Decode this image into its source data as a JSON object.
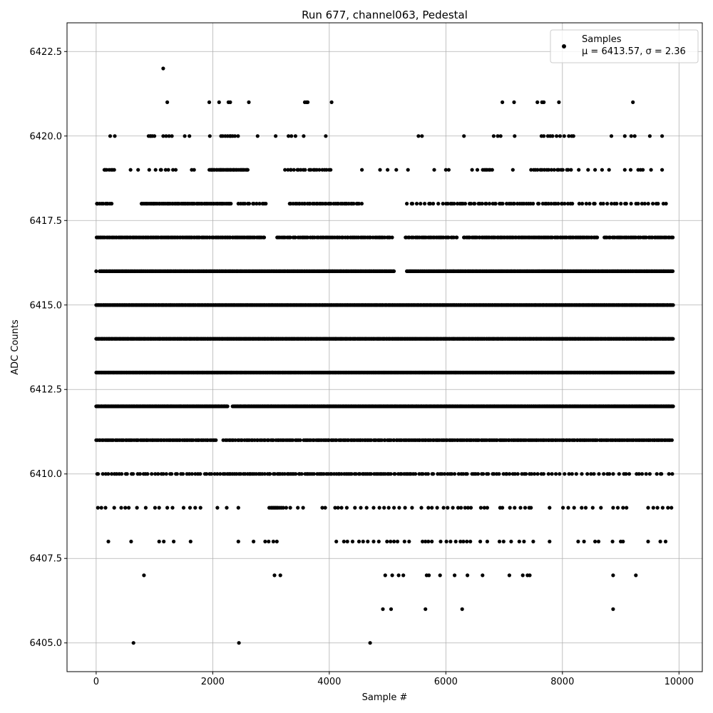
{
  "chart_data": {
    "type": "scatter",
    "title": "Run 677, channel063, Pedestal",
    "xlabel": "Sample #",
    "ylabel": "ADC Counts",
    "xlim": [
      -500,
      10400
    ],
    "ylim": [
      6404.15,
      6423.35
    ],
    "xticks": [
      0,
      2000,
      4000,
      6000,
      8000,
      10000
    ],
    "yticks": [
      6405.0,
      6407.5,
      6410.0,
      6412.5,
      6415.0,
      6417.5,
      6420.0,
      6422.5
    ],
    "xtick_labels": [
      "0",
      "2000",
      "4000",
      "6000",
      "8000",
      "10000"
    ],
    "ytick_labels": [
      "6405.0",
      "6407.5",
      "6410.0",
      "6412.5",
      "6415.0",
      "6417.5",
      "6420.0",
      "6422.5"
    ],
    "grid": true,
    "marker_color": "#000000",
    "legend": {
      "placement": "upper right",
      "entry_label": "Samples",
      "stats_prefix": "μ = ",
      "mu": "6413.57",
      "stats_mid": ", σ = ",
      "sigma": "2.36"
    },
    "x_range": [
      0,
      9900
    ],
    "levels": [
      {
        "y": 6405,
        "x": [
          640,
          2450,
          4700
        ]
      },
      {
        "y": 6406,
        "x": [
          4920,
          5060,
          5650,
          6280,
          8870
        ]
      },
      {
        "y": 6407,
        "x": [
          820,
          3060,
          3160,
          4960,
          5080,
          5190,
          5270,
          5670,
          5710,
          5900,
          6150,
          6370,
          6630,
          7090,
          7320,
          7400,
          7440,
          8870,
          9260
        ]
      },
      {
        "y": 6408,
        "x": [
          210,
          600,
          1080,
          1160,
          1330,
          1620,
          2440,
          2700,
          2900,
          2960,
          3040,
          3100,
          4120,
          4250,
          4310,
          4400,
          4510,
          4580,
          4660,
          4760,
          4850,
          4990,
          5050,
          5110,
          5170,
          5290,
          5370,
          5600,
          5650,
          5700,
          5760,
          5910,
          6010,
          6080,
          6170,
          6250,
          6300,
          6360,
          6420,
          6590,
          6710,
          6920,
          6990,
          7120,
          7260,
          7340,
          7500,
          7780,
          8270,
          8370,
          8560,
          8620,
          8860,
          9000,
          9040,
          9470,
          9680,
          9770
        ]
      },
      {
        "y": 6409,
        "x": [
          30,
          90,
          160,
          310,
          430,
          500,
          560,
          700,
          850,
          1010,
          1080,
          1220,
          1310,
          1500,
          1610,
          1700,
          1790,
          2080,
          2240,
          2440,
          2970,
          3000,
          3020,
          3040,
          3060,
          3080,
          3100,
          3120,
          3150,
          3180,
          3210,
          3260,
          3330,
          3460,
          3550,
          3880,
          3930,
          4100,
          4150,
          4210,
          4300,
          4440,
          4540,
          4640,
          4760,
          4860,
          4940,
          5020,
          5110,
          5200,
          5300,
          5420,
          5580,
          5700,
          5760,
          5850,
          5960,
          6030,
          6120,
          6210,
          6260,
          6330,
          6380,
          6430,
          6600,
          6660,
          6710,
          6930,
          6970,
          7100,
          7180,
          7280,
          7360,
          7430,
          7460,
          7780,
          8010,
          8100,
          8200,
          8330,
          8400,
          8520,
          8660,
          8870,
          8950,
          9040,
          9100,
          9470,
          9560,
          9630,
          9720,
          9810,
          9870
        ]
      },
      {
        "y": 6410,
        "segments": [
          [
            0,
            2160,
            50
          ],
          [
            2180,
            5420,
            34
          ],
          [
            5440,
            7520,
            45
          ],
          [
            7560,
            9900,
            70
          ]
        ]
      },
      {
        "y": 6411,
        "segments": [
          [
            0,
            2060,
            25
          ],
          [
            2180,
            3520,
            30
          ],
          [
            3560,
            9900,
            26
          ]
        ]
      },
      {
        "y": 6412,
        "segments": [
          [
            0,
            2260,
            12
          ],
          [
            2340,
            9900,
            12
          ]
        ]
      },
      {
        "y": 6413,
        "segments": [
          [
            0,
            9900,
            12
          ]
        ]
      },
      {
        "y": 6414,
        "segments": [
          [
            0,
            9900,
            12
          ]
        ]
      },
      {
        "y": 6415,
        "segments": [
          [
            0,
            9900,
            12
          ]
        ]
      },
      {
        "y": 6416,
        "segments": [
          [
            0,
            0,
            1
          ],
          [
            60,
            5120,
            14
          ],
          [
            5330,
            9900,
            14
          ]
        ]
      },
      {
        "y": 6417,
        "segments": [
          [
            0,
            2900,
            22
          ],
          [
            3100,
            5100,
            30
          ],
          [
            5300,
            6220,
            28
          ],
          [
            6300,
            8620,
            24
          ],
          [
            8720,
            9900,
            26
          ]
        ]
      },
      {
        "y": 6418,
        "segments": [
          [
            0,
            270,
            30
          ],
          [
            770,
            2320,
            22
          ],
          [
            2440,
            2950,
            40
          ],
          [
            3320,
            4560,
            30
          ],
          [
            5330,
            5870,
            60
          ],
          [
            5950,
            7520,
            40
          ],
          [
            7570,
            8200,
            40
          ],
          [
            8280,
            9820,
            60
          ]
        ]
      },
      {
        "y": 6419,
        "segments": [
          [
            130,
            310,
            30
          ],
          [
            1020,
            1400,
            60
          ],
          [
            1940,
            2600,
            20
          ],
          [
            3240,
            4060,
            40
          ],
          [
            6620,
            6800,
            30
          ],
          [
            7460,
            8160,
            40
          ],
          [
            9300,
            9380,
            40
          ]
        ],
        "x": [
          590,
          720,
          910,
          1640,
          1680,
          4560,
          4870,
          5000,
          5150,
          5350,
          5800,
          6000,
          6050,
          6450,
          6540,
          7150,
          8280,
          8440,
          8560,
          8680,
          8800,
          9070,
          9170,
          9520,
          9710
        ]
      },
      {
        "y": 6420,
        "segments": [
          [
            900,
            1000,
            25
          ],
          [
            2140,
            2440,
            35
          ]
        ],
        "x": [
          240,
          320,
          1150,
          1200,
          1250,
          1300,
          1520,
          1600,
          1950,
          2770,
          3080,
          3300,
          3350,
          3420,
          3560,
          3940,
          5530,
          5590,
          6310,
          6820,
          6890,
          6940,
          7180,
          7640,
          7680,
          7750,
          7790,
          7830,
          7900,
          7960,
          8030,
          8110,
          8160,
          8190,
          8840,
          9070,
          9180,
          9240,
          9500,
          9710
        ]
      },
      {
        "y": 6421,
        "x": [
          1220,
          1940,
          2110,
          2270,
          2300,
          2620,
          3580,
          3610,
          3630,
          4040,
          6970,
          7170,
          7570,
          7650,
          7680,
          7940,
          9210
        ]
      },
      {
        "y": 6422,
        "x": [
          1150
        ]
      }
    ]
  }
}
